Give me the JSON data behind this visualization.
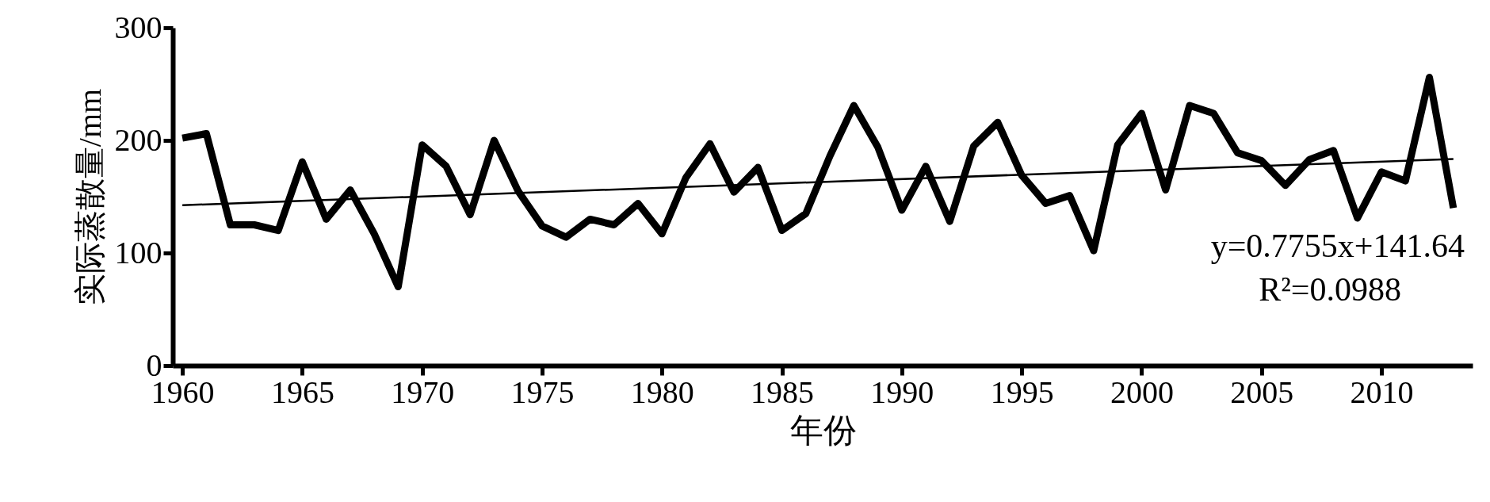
{
  "chart_data": {
    "type": "line",
    "xlabel": "年份",
    "ylabel": "实际蒸散量/mm",
    "x": [
      1960,
      1961,
      1962,
      1963,
      1964,
      1965,
      1966,
      1967,
      1968,
      1969,
      1970,
      1971,
      1972,
      1973,
      1974,
      1975,
      1976,
      1977,
      1978,
      1979,
      1980,
      1981,
      1982,
      1983,
      1984,
      1985,
      1986,
      1987,
      1988,
      1989,
      1990,
      1991,
      1992,
      1993,
      1994,
      1995,
      1996,
      1997,
      1998,
      1999,
      2000,
      2001,
      2002,
      2003,
      2004,
      2005,
      2006,
      2007,
      2008,
      2009,
      2010,
      2011,
      2012,
      2013
    ],
    "series": [
      {
        "color": "#000000",
        "values": [
          202,
          206,
          125,
          125,
          120,
          181,
          130,
          156,
          117,
          70,
          196,
          177,
          134,
          200,
          155,
          124,
          114,
          130,
          125,
          144,
          117,
          167,
          197,
          154,
          176,
          120,
          135,
          186,
          231,
          194,
          138,
          177,
          128,
          195,
          216,
          169,
          144,
          151,
          102,
          196,
          224,
          156,
          231,
          224,
          189,
          182,
          160,
          183,
          191,
          131,
          172,
          164,
          256,
          140
        ]
      },
      {
        "type": "line",
        "color": "#000000",
        "x": [
          1960,
          2013
        ],
        "values": [
          142.4,
          183.5
        ]
      }
    ],
    "xlim": [
      1959.6,
      2013.8
    ],
    "xticks": [
      1960,
      1965,
      1970,
      1975,
      1980,
      1985,
      1990,
      1995,
      2000,
      2005,
      2010
    ],
    "ylim": [
      0,
      300
    ],
    "yticks": [
      0,
      100,
      200,
      300
    ],
    "annotations": [
      "y=0.7755x+141.64",
      "R²=0.0988"
    ]
  }
}
